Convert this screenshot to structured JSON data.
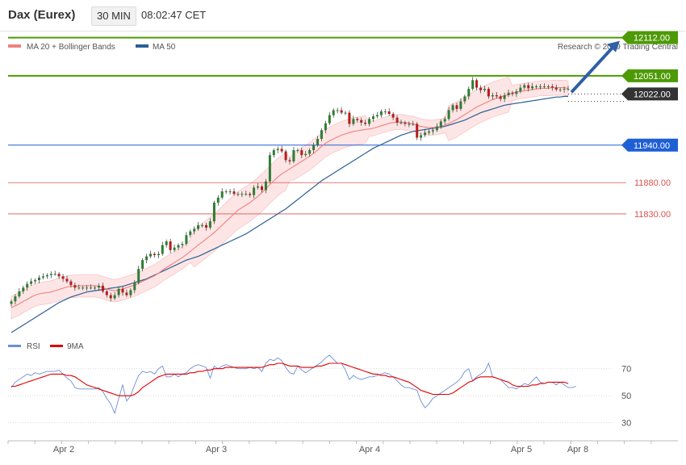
{
  "header": {
    "instrument": "Dax (Eurex)",
    "timeframe": "30 MIN",
    "time": "08:02:47 CET"
  },
  "legend": {
    "ma20": "MA 20 + Bollinger Bands",
    "ma50": "MA 50",
    "credit": "Research © 2019 Trading Central",
    "rsi": "RSI",
    "ma9": "9MA"
  },
  "colors": {
    "ma20": "#f08080",
    "ma50": "#2b5f95",
    "band": "#fcdcdc",
    "green": "#4e9a06",
    "blue": "#1f5fd6",
    "red": "#d9534f",
    "up": "#2e7d32",
    "down": "#b71c1c",
    "rsi": "#6b8fd6",
    "rsi_ma": "#e00000"
  },
  "chart_data": [
    {
      "type": "candlestick",
      "title": "Dax (Eurex)",
      "xlabel": "",
      "ylabel": "",
      "x_ticks": [
        "Apr 2",
        "Apr 3",
        "Apr 4",
        "Apr 5",
        "Apr 8"
      ],
      "ylim": [
        11640,
        12140
      ],
      "grid": false,
      "legend_position": "top-left",
      "close": [
        11690,
        11698,
        11706,
        11712,
        11718,
        11722,
        11724,
        11728,
        11730,
        11732,
        11734,
        11734,
        11730,
        11726,
        11722,
        11716,
        11712,
        11712,
        11712,
        11712,
        11712,
        11712,
        11715,
        11706,
        11700,
        11695,
        11700,
        11710,
        11704,
        11700,
        11708,
        11720,
        11742,
        11756,
        11762,
        11766,
        11764,
        11766,
        11780,
        11786,
        11772,
        11776,
        11780,
        11782,
        11796,
        11802,
        11806,
        11812,
        11812,
        11808,
        11818,
        11848,
        11856,
        11866,
        11866,
        11866,
        11862,
        11862,
        11862,
        11862,
        11860,
        11872,
        11874,
        11868,
        11882,
        11924,
        11932,
        11934,
        11930,
        11916,
        11914,
        11932,
        11932,
        11924,
        11926,
        11932,
        11940,
        11950,
        11964,
        11975,
        11988,
        11996,
        11996,
        11992,
        11992,
        11974,
        11982,
        11980,
        11976,
        11974,
        11982,
        11986,
        11988,
        11994,
        11994,
        11990,
        11984,
        11976,
        11976,
        11974,
        11974,
        11974,
        11952,
        11956,
        11960,
        11962,
        11964,
        11970,
        11978,
        11982,
        11996,
        12004,
        11998,
        12010,
        12018,
        12030,
        12044,
        12032,
        12028,
        12030,
        12018,
        12020,
        12018,
        12014,
        12020,
        12024,
        12022,
        12026,
        12032,
        12036,
        12031,
        12034,
        12034,
        12034,
        12034,
        12034,
        12032,
        12029,
        12029,
        12030,
        12030
      ],
      "ma20": [
        11680,
        11683,
        11686,
        11690,
        11693,
        11697,
        11700,
        11702,
        11703,
        11704,
        11705,
        11707,
        11709,
        11711,
        11713,
        11714,
        11714,
        11715,
        11715,
        11715,
        11715,
        11715,
        11714,
        11712,
        11710,
        11708,
        11707,
        11708,
        11710,
        11712,
        11714,
        11716,
        11719,
        11722,
        11725,
        11728,
        11731,
        11735,
        11740,
        11744,
        11748,
        11752,
        11756,
        11760,
        11765,
        11770,
        11775,
        11780,
        11785,
        11790,
        11795,
        11800,
        11806,
        11812,
        11818,
        11824,
        11830,
        11836,
        11840,
        11844,
        11848,
        11853,
        11858,
        11864,
        11870,
        11877,
        11883,
        11889,
        11894,
        11898,
        11902,
        11906,
        11910,
        11914,
        11918,
        11922,
        11927,
        11932,
        11938,
        11943,
        11947,
        11950,
        11953,
        11956,
        11958,
        11960,
        11962,
        11963,
        11964,
        11965,
        11966,
        11967,
        11969,
        11971,
        11973,
        11975,
        11976,
        11977,
        11977,
        11976,
        11975,
        11974,
        11972,
        11970,
        11969,
        11968,
        11968,
        11969,
        11970,
        11972,
        11975,
        11978,
        11981,
        11985,
        11989,
        11993,
        11997,
        12001,
        12004,
        12007,
        12010,
        12013,
        12015,
        12017,
        12019,
        12021,
        12023,
        12025,
        12026,
        12027,
        12028,
        12029,
        12030,
        12031,
        12031,
        12031,
        12032,
        12032,
        12032,
        12032,
        12031
      ],
      "ma50": [
        11640,
        11644,
        11648,
        11652,
        11656,
        11660,
        11664,
        11668,
        11672,
        11676,
        11680,
        11684,
        11688,
        11691,
        11694,
        11697,
        11699,
        11701,
        11703,
        11705,
        11706,
        11707,
        11708,
        11709,
        11710,
        11711,
        11712,
        11713,
        11714,
        11716,
        11718,
        11720,
        11722,
        11724,
        11726,
        11729,
        11732,
        11735,
        11738,
        11741,
        11744,
        11747,
        11750,
        11753,
        11756,
        11758,
        11760,
        11762,
        11765,
        11768,
        11771,
        11774,
        11777,
        11780,
        11783,
        11786,
        11789,
        11792,
        11795,
        11798,
        11802,
        11806,
        11810,
        11814,
        11818,
        11822,
        11826,
        11830,
        11834,
        11838,
        11843,
        11848,
        11853,
        11858,
        11863,
        11868,
        11873,
        11878,
        11883,
        11887,
        11891,
        11895,
        11899,
        11903,
        11907,
        11911,
        11915,
        11919,
        11923,
        11927,
        11931,
        11935,
        11938,
        11941,
        11944,
        11947,
        11950,
        11953,
        11956,
        11958,
        11960,
        11962,
        11963,
        11964,
        11965,
        11966,
        11967,
        11968,
        11969,
        11970,
        11972,
        11974,
        11976,
        11978,
        11980,
        11983,
        11986,
        11989,
        11992,
        11994,
        11996,
        11998,
        12000,
        12002,
        12004,
        12005,
        12006,
        12007,
        12008,
        12009,
        12010,
        12011,
        12012,
        12013,
        12014,
        12015,
        12016,
        12017,
        12017,
        12018,
        12018
      ],
      "rsi": [
        56,
        60,
        62,
        64,
        66,
        65,
        67,
        66,
        67,
        68,
        68,
        68,
        69,
        66,
        63,
        61,
        56,
        55,
        55,
        55,
        55,
        55,
        56,
        53,
        48,
        44,
        37,
        48,
        58,
        46,
        50,
        58,
        65,
        68,
        67,
        68,
        66,
        70,
        72,
        64,
        64,
        66,
        64,
        66,
        67,
        70,
        72,
        73,
        72,
        71,
        63,
        72,
        70,
        72,
        73,
        72,
        71,
        70,
        70,
        70,
        71,
        70,
        71,
        68,
        74,
        77,
        76,
        78,
        76,
        71,
        67,
        66,
        72,
        69,
        67,
        69,
        71,
        73,
        75,
        78,
        80,
        77,
        74,
        74,
        69,
        62,
        65,
        63,
        62,
        63,
        64,
        64,
        65,
        66,
        67,
        66,
        64,
        61,
        58,
        56,
        56,
        55,
        54,
        46,
        41,
        44,
        48,
        50,
        52,
        54,
        56,
        58,
        60,
        63,
        68,
        70,
        61,
        64,
        66,
        68,
        74,
        64,
        63,
        62,
        59,
        56,
        56,
        55,
        57,
        59,
        58,
        61,
        64,
        60,
        59,
        60,
        60,
        58,
        60,
        58,
        56,
        56,
        57
      ],
      "rsi_ma": [
        57,
        57,
        58,
        59,
        60,
        61,
        62,
        63,
        64,
        65,
        66,
        66,
        66,
        66,
        65,
        65,
        64,
        62,
        60,
        58,
        57,
        56,
        55,
        54,
        53,
        52,
        51,
        50,
        50,
        50,
        50,
        51,
        53,
        56,
        58,
        60,
        62,
        64,
        65,
        66,
        66,
        66,
        66,
        66,
        66,
        67,
        67,
        68,
        68,
        69,
        69,
        70,
        70,
        70,
        71,
        71,
        71,
        71,
        71,
        71,
        71,
        71,
        71,
        71,
        72,
        73,
        73,
        74,
        74,
        73,
        72,
        72,
        72,
        71,
        71,
        71,
        71,
        72,
        72,
        73,
        74,
        74,
        74,
        74,
        73,
        72,
        71,
        70,
        69,
        68,
        67,
        66,
        66,
        65,
        65,
        64,
        64,
        63,
        62,
        61,
        60,
        58,
        56,
        54,
        53,
        52,
        51,
        51,
        51,
        51,
        51,
        52,
        54,
        56,
        58,
        60,
        61,
        63,
        64,
        64,
        64,
        64,
        63,
        62,
        61,
        60,
        58,
        57,
        57,
        57,
        57,
        58,
        58,
        59,
        59,
        60,
        60,
        60,
        60,
        60,
        59
      ],
      "rsi_levels": [
        70,
        50,
        30
      ],
      "rsi_range": [
        22,
        80
      ],
      "horizontal_lines": [
        {
          "value": 12112.0,
          "label": "12112.00",
          "kind": "green"
        },
        {
          "value": 12051.0,
          "label": "12051.00",
          "kind": "green"
        },
        {
          "value": 12022.0,
          "label": "12022.00",
          "kind": "current"
        },
        {
          "value": 11940.0,
          "label": "11940.00",
          "kind": "blue"
        },
        {
          "value": 11880.0,
          "label": "11880.00",
          "kind": "red"
        },
        {
          "value": 11830.0,
          "label": "11830.00",
          "kind": "red"
        }
      ],
      "arrow": {
        "direction": "up",
        "target": 12112.0
      }
    }
  ]
}
